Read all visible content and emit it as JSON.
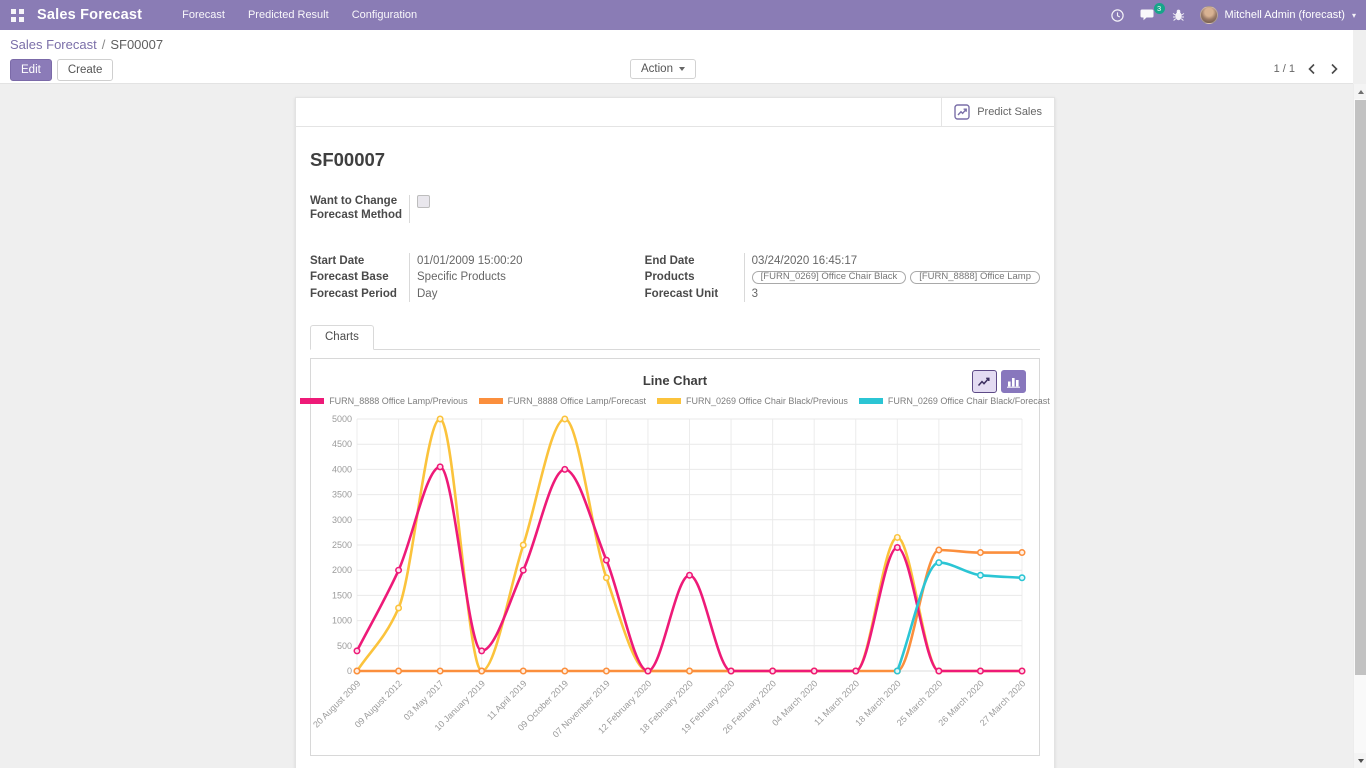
{
  "navbar": {
    "app_title": "Sales Forecast",
    "menus": [
      "Forecast",
      "Predicted Result",
      "Configuration"
    ],
    "message_badge": "3",
    "user_name": "Mitchell Admin (forecast)"
  },
  "breadcrumb": {
    "parent": "Sales Forecast",
    "separator": "/",
    "current": "SF00007"
  },
  "control_panel": {
    "edit_label": "Edit",
    "create_label": "Create",
    "action_label": "Action",
    "pager": "1 / 1"
  },
  "form": {
    "predict_button_label": "Predict Sales",
    "record_title": "SF00007",
    "checkbox_field": {
      "label_line1": "Want to Change",
      "label_line2": "Forecast Method",
      "checked": false
    },
    "fields_left": [
      {
        "label": "Start Date",
        "value": "01/01/2009 15:00:20"
      },
      {
        "label": "Forecast Base",
        "value": "Specific Products"
      },
      {
        "label": "Forecast Period",
        "value": "Day"
      }
    ],
    "fields_right": [
      {
        "label": "End Date",
        "value": "03/24/2020 16:45:17"
      },
      {
        "label": "Products",
        "tags": [
          "[FURN_0269] Office Chair Black",
          "[FURN_8888] Office Lamp"
        ]
      },
      {
        "label": "Forecast Unit",
        "value": "3"
      }
    ],
    "tab_label": "Charts"
  },
  "icons": {
    "apps-menu-icon": "grid",
    "activities-icon": "clock",
    "messages-icon": "chat-bubble",
    "debug-icon": "bug",
    "user-menu-caret-icon": "caret-down",
    "pager-previous-icon": "chevron-left",
    "pager-next-icon": "chevron-right",
    "predict-sales-icon": "line-chart",
    "line-chart-toggle-icon": "line-chart",
    "bar-chart-toggle-icon": "bar-chart"
  },
  "colors": {
    "navbar": "#8a7cb5",
    "link": "#7b6fa9",
    "primary_button": "#8b7bb8",
    "badge": "#16a589"
  },
  "chart_data": {
    "type": "line",
    "title": "Line Chart",
    "x": [
      "20 August 2009",
      "09 August 2012",
      "03 May 2017",
      "10 January 2019",
      "11 April 2019",
      "09 October 2019",
      "07 November 2019",
      "12 February 2020",
      "18 February 2020",
      "19 February 2020",
      "26 February 2020",
      "04 March 2020",
      "11 March 2020",
      "18 March 2020",
      "25 March 2020",
      "26 March 2020",
      "27 March 2020"
    ],
    "xlabel": "",
    "ylabel": "",
    "ylim": [
      0,
      5000
    ],
    "ytick_step": 500,
    "grid": true,
    "legend_position": "top",
    "series": [
      {
        "name": "FURN_8888 Office Lamp/Previous",
        "color": "#ee1a78",
        "values": [
          400,
          2000,
          4050,
          400,
          2000,
          4000,
          2200,
          0,
          1900,
          0,
          0,
          0,
          0,
          2450,
          0,
          0,
          0
        ]
      },
      {
        "name": "FURN_8888 Office Lamp/Forecast",
        "color": "#fb8f3d",
        "values": [
          0,
          0,
          0,
          0,
          0,
          0,
          0,
          0,
          0,
          0,
          0,
          0,
          0,
          0,
          2400,
          2350,
          2350
        ]
      },
      {
        "name": "FURN_0269 Office Chair Black/Previous",
        "color": "#fbc33c",
        "values": [
          0,
          1250,
          5000,
          0,
          2500,
          5000,
          1850,
          0,
          0,
          0,
          0,
          0,
          0,
          2650,
          0,
          0,
          0
        ]
      },
      {
        "name": "FURN_0269 Office Chair Black/Forecast",
        "color": "#2bc5d4",
        "values": [
          null,
          null,
          null,
          null,
          null,
          null,
          null,
          null,
          null,
          null,
          null,
          null,
          null,
          0,
          2150,
          1900,
          1850
        ]
      }
    ]
  }
}
